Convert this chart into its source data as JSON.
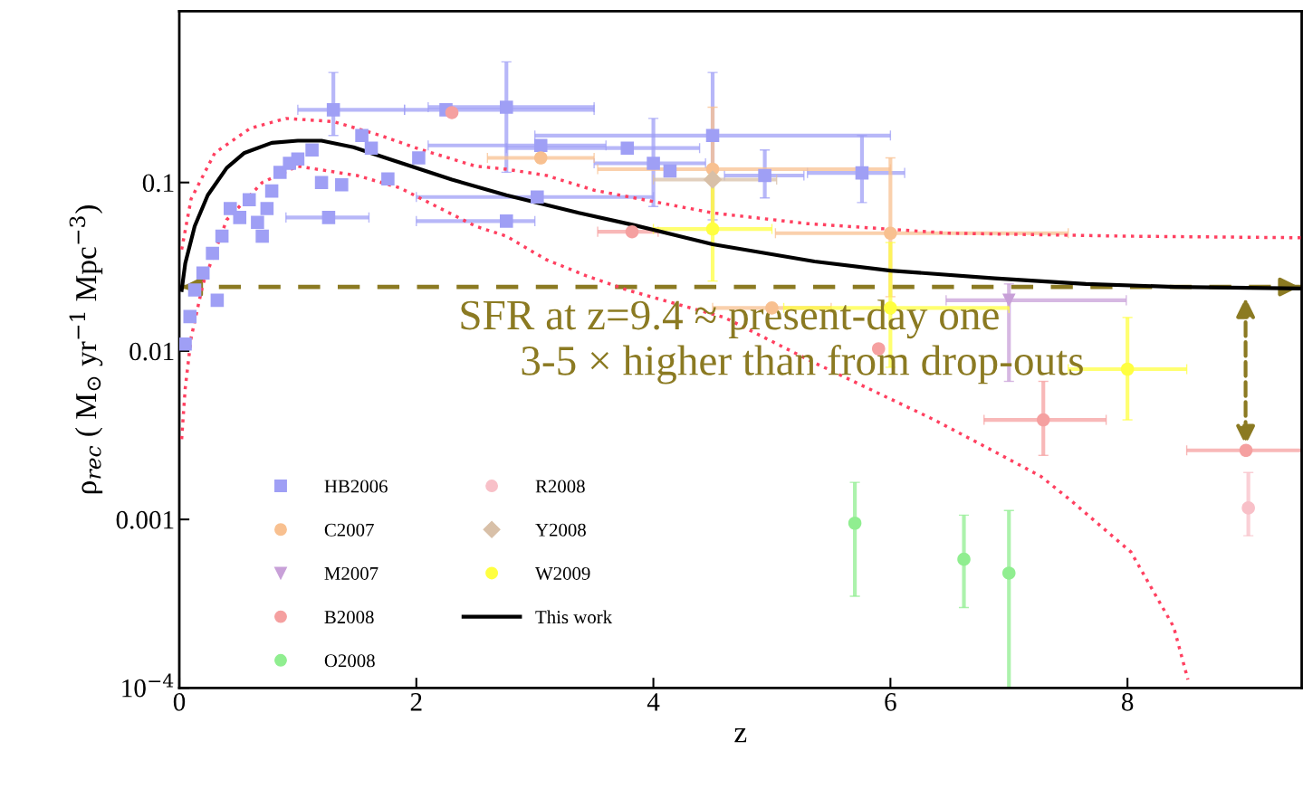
{
  "chart_data": {
    "type": "scatter",
    "xlabel": "z",
    "ylabel": "ρ$_{rec}$ ( M$_{⊙}$ yr$^{−1}$ Mpc$^{−3}$)",
    "log": "y",
    "xlim": [
      0,
      9.47
    ],
    "ylim": [
      0.0001,
      1.04
    ],
    "xticks": [
      0,
      2,
      4,
      6,
      8
    ],
    "yticks": [
      {
        "value": 0.0001,
        "label": "10$^{−4}$"
      },
      {
        "value": 0.001,
        "label": "0.001"
      },
      {
        "value": 0.01,
        "label": "0.01"
      },
      {
        "value": 0.1,
        "label": "0.1"
      }
    ],
    "grid": false,
    "legend": "bottom left",
    "annotations": [
      "SFR at z=9.4 ≈ present-day one",
      "3-5 × higher than from drop-outs"
    ],
    "ref_lines": [
      {
        "axis": "y",
        "value": 0.024,
        "color": "#8b7a22",
        "line_style": "dashed"
      }
    ],
    "series": [
      {
        "name": "HB2006",
        "color": "#9f9ff5",
        "marker": "square",
        "x": [
          0.05,
          0.09,
          0.13,
          0.2,
          0.28,
          0.32,
          0.36,
          0.43,
          0.51,
          0.59,
          0.66,
          0.7,
          0.74,
          0.78,
          0.85,
          0.93,
          1.0,
          1.12,
          1.2,
          1.26,
          1.27,
          1.3,
          1.37,
          1.54,
          1.62,
          1.76,
          2.02,
          2.25,
          2.76,
          2.76,
          3.02,
          3.05,
          3.78,
          4.0,
          4.14,
          4.5,
          4.94,
          5.76
        ],
        "values": [
          0.011,
          0.016,
          0.023,
          0.029,
          0.038,
          0.02,
          0.048,
          0.07,
          0.062,
          0.079,
          0.058,
          0.048,
          0.07,
          0.089,
          0.115,
          0.13,
          0.138,
          0.156,
          0.1,
          0.062,
          null,
          0.27,
          0.097,
          0.19,
          0.16,
          0.105,
          0.14,
          0.27,
          0.28,
          0.059,
          0.082,
          0.166,
          0.16,
          0.13,
          0.117,
          0.19,
          0.11,
          0.114
        ],
        "xerrors": [
          null,
          null,
          null,
          null,
          null,
          null,
          null,
          null,
          null,
          null,
          null,
          null,
          null,
          null,
          null,
          null,
          null,
          null,
          null,
          [
            0.9,
            1.6
          ],
          null,
          [
            1.0,
            1.9
          ],
          null,
          null,
          null,
          null,
          null,
          [
            1.9,
            3.5
          ],
          [
            2.1,
            3.5
          ],
          [
            2.0,
            3.0
          ],
          [
            2.0,
            4.0
          ],
          [
            2.1,
            3.6
          ],
          [
            2.76,
            4.39
          ],
          [
            3.5,
            4.44
          ],
          null,
          [
            3.0,
            6.0
          ],
          [
            4.6,
            5.27
          ],
          [
            5.3,
            6.12
          ]
        ],
        "errors": [
          null,
          null,
          null,
          null,
          null,
          null,
          null,
          null,
          null,
          null,
          null,
          null,
          null,
          null,
          null,
          null,
          null,
          null,
          null,
          null,
          null,
          [
            0.19,
            0.45
          ],
          null,
          null,
          null,
          null,
          null,
          null,
          [
            0.115,
            0.52
          ],
          null,
          null,
          null,
          null,
          [
            0.072,
            0.24
          ],
          null,
          [
            0.06,
            0.45
          ],
          [
            0.081,
            0.156
          ],
          [
            0.076,
            0.19
          ]
        ]
      },
      {
        "name": "C2007",
        "color": "#f8c090",
        "marker": "circle",
        "x": [
          3.05,
          4.5,
          5.0,
          6.0
        ],
        "values": [
          0.14,
          0.12,
          0.018,
          0.05
        ],
        "xerrors": [
          [
            2.6,
            3.5
          ],
          [
            3.53,
            6.0
          ],
          [
            4.5,
            5.5
          ],
          [
            5.03,
            7.5
          ]
        ],
        "errors": [
          null,
          [
            0.05,
            0.28
          ],
          null,
          [
            0.021,
            0.14
          ]
        ]
      },
      {
        "name": "M2007",
        "color": "#c8a0d8",
        "marker": "triangle",
        "x": [
          7.0
        ],
        "values": [
          0.02
        ],
        "xerrors": [
          [
            6.47,
            7.99
          ]
        ],
        "errors": [
          [
            0.0066,
            0.025
          ]
        ]
      },
      {
        "name": "B2008",
        "color": "#f5a0a0",
        "marker": "circle",
        "x": [
          2.3,
          3.82,
          5.9,
          7.29,
          9.0
        ],
        "values": [
          0.26,
          0.051,
          0.0103,
          0.0039,
          0.00257
        ],
        "xerrors": [
          null,
          [
            3.53,
            4.04
          ],
          null,
          [
            6.79,
            7.82
          ],
          [
            8.5,
            9.47
          ]
        ],
        "errors": [
          null,
          null,
          null,
          [
            0.0024,
            0.0066
          ],
          null
        ]
      },
      {
        "name": "O2008",
        "color": "#90ee90",
        "marker": "circle",
        "x": [
          5.7,
          6.62,
          7.0
        ],
        "values": [
          0.00095,
          0.00058,
          0.00048
        ],
        "errors": [
          [
            0.00035,
            0.00166
          ],
          [
            0.0003,
            0.00106
          ],
          [
            0.0001,
            0.00113
          ]
        ]
      },
      {
        "name": "R2008",
        "color": "#f8c0c8",
        "marker": "circle",
        "x": [
          9.02
        ],
        "values": [
          0.00117
        ],
        "errors": [
          [
            0.0008,
            0.0019
          ]
        ]
      },
      {
        "name": "Y2008",
        "color": "#d8c0a8",
        "marker": "diamond",
        "x": [
          4.5
        ],
        "values": [
          0.104
        ],
        "xerrors": [
          [
            4.0,
            5.04
          ]
        ]
      },
      {
        "name": "W2009",
        "color": "#ffff40",
        "marker": "circle",
        "x": [
          4.5,
          6.0,
          8.0
        ],
        "values": [
          0.053,
          0.018,
          0.0078
        ],
        "xerrors": [
          [
            4.0,
            5.0
          ],
          [
            5.1,
            7.0
          ],
          [
            7.5,
            8.5
          ]
        ],
        "errors": [
          [
            0.026,
            0.11
          ],
          [
            0.008,
            0.044
          ],
          [
            0.0039,
            0.0158
          ]
        ]
      },
      {
        "type": "line",
        "name": "This work",
        "color": "#000000",
        "line_style": "solid",
        "x": [
          0.02,
          0.05,
          0.13,
          0.24,
          0.4,
          0.55,
          0.78,
          1.0,
          1.2,
          1.47,
          1.77,
          2.3,
          2.76,
          3.37,
          3.83,
          4.5,
          5.36,
          6.0,
          6.88,
          7.65,
          8.4,
          9.47
        ],
        "values": [
          0.023,
          0.033,
          0.055,
          0.084,
          0.122,
          0.15,
          0.172,
          0.177,
          0.177,
          0.162,
          0.138,
          0.104,
          0.084,
          0.066,
          0.056,
          0.043,
          0.034,
          0.03,
          0.027,
          0.025,
          0.024,
          0.0235
        ]
      },
      {
        "type": "line",
        "color": "#ff4060",
        "line_style": "dotted",
        "x": [
          0.02,
          0.1,
          0.3,
          0.6,
          0.9,
          1.3,
          1.7,
          2.0,
          2.5,
          2.76,
          3.1,
          3.5,
          4.5,
          5.3,
          6.5,
          8.0,
          9.47
        ],
        "values": [
          0.04,
          0.08,
          0.15,
          0.21,
          0.24,
          0.23,
          0.19,
          0.16,
          0.125,
          0.12,
          0.11,
          0.09,
          0.066,
          0.057,
          0.05,
          0.048,
          0.047
        ]
      },
      {
        "type": "line",
        "color": "#ff4060",
        "line_style": "dotted",
        "x": [
          0.02,
          0.05,
          0.1,
          0.2,
          0.4,
          0.7,
          1.0,
          1.5,
          1.86,
          2.5,
          2.76,
          3.09,
          3.43,
          3.78,
          4.6,
          5.36,
          6.37,
          6.89,
          7.27,
          7.52,
          8.03,
          8.39,
          8.51
        ],
        "values": [
          0.003,
          0.006,
          0.012,
          0.025,
          0.06,
          0.1,
          0.125,
          0.11,
          0.093,
          0.055,
          0.048,
          0.035,
          0.028,
          0.023,
          0.0158,
          0.0085,
          0.0039,
          0.0025,
          0.0018,
          0.0013,
          0.00064,
          0.00023,
          0.000112
        ]
      }
    ]
  }
}
